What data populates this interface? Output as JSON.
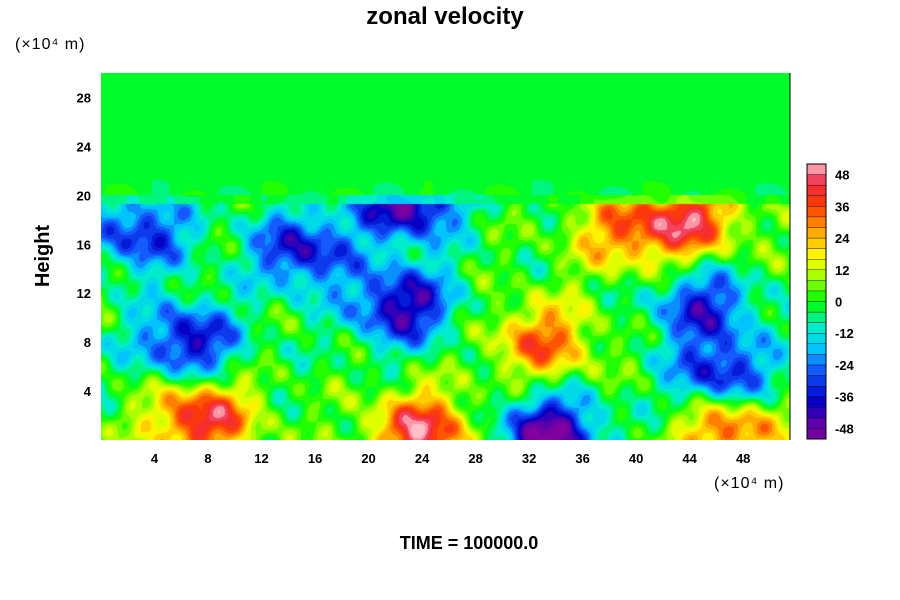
{
  "chart_data": {
    "type": "heatmap",
    "title": "zonal velocity",
    "ylabel": "Height",
    "xlabel": "",
    "x_unit_text": "(×10⁴ m)",
    "y_unit_text": "(×10⁴ m)",
    "xlim": [
      0,
      51.5
    ],
    "ylim": [
      0,
      30
    ],
    "x_ticks": [
      "4",
      "8",
      "12",
      "16",
      "20",
      "24",
      "28",
      "32",
      "36",
      "40",
      "44",
      "48"
    ],
    "y_ticks": [
      "4",
      "8",
      "12",
      "16",
      "20",
      "24",
      "28"
    ],
    "colorbar": {
      "range": [
        -52,
        52
      ],
      "ticks": [
        "48",
        "36",
        "24",
        "12",
        "0",
        "-12",
        "-24",
        "-36",
        "-48"
      ]
    },
    "field_features": [
      {
        "x": 6.5,
        "y": 8,
        "value": -40
      },
      {
        "x": 22.5,
        "y": 11,
        "value": -44
      },
      {
        "x": 23,
        "y": 19.6,
        "value": -50
      },
      {
        "x": 15,
        "y": 15.5,
        "value": -38
      },
      {
        "x": 3,
        "y": 17,
        "value": -34
      },
      {
        "x": 33,
        "y": 8,
        "value": 33
      },
      {
        "x": 33.5,
        "y": 0.5,
        "value": -50
      },
      {
        "x": 46.5,
        "y": 5,
        "value": -42
      },
      {
        "x": 45,
        "y": 11,
        "value": -34
      },
      {
        "x": 7.5,
        "y": 1.8,
        "value": 46
      },
      {
        "x": 24,
        "y": 0.6,
        "value": 46
      },
      {
        "x": 47,
        "y": 1.2,
        "value": 42
      },
      {
        "x": 44,
        "y": 18,
        "value": 40
      },
      {
        "x": 39,
        "y": 17,
        "value": 28
      }
    ],
    "background_value": 0
  },
  "footer": {
    "time_label": "TIME = 100000.0"
  }
}
